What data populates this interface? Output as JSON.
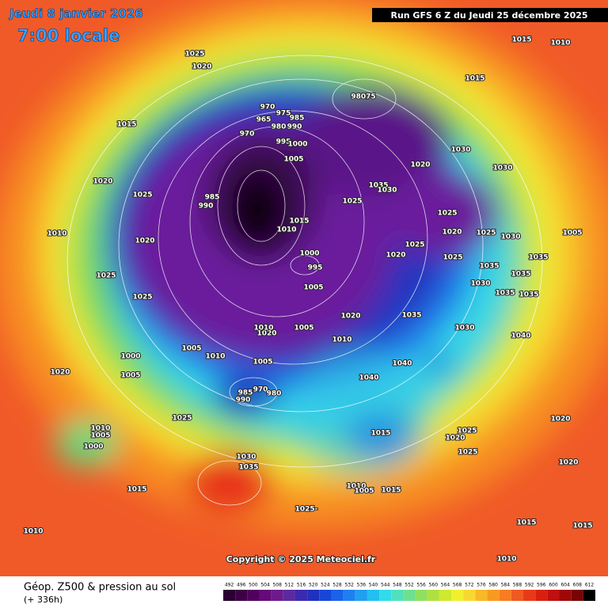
{
  "header": {
    "date": "Jeudi 8 janvier 2026",
    "time": "7:00 locale",
    "run": "Run GFS 6 Z du Jeudi 25 décembre 2025"
  },
  "copyright": "Copyright © 2025 Meteociel.fr",
  "footer": {
    "title": "Géop. Z500 & pression au sol",
    "lead": "(+ 336h)"
  },
  "scale": {
    "values": [
      492,
      496,
      500,
      504,
      508,
      512,
      516,
      520,
      524,
      528,
      532,
      536,
      540,
      544,
      548,
      552,
      556,
      560,
      564,
      568,
      572,
      576,
      580,
      584,
      588,
      592,
      596,
      600,
      604,
      608,
      612
    ],
    "colors": [
      "#2a0030",
      "#3d0045",
      "#52005e",
      "#650a78",
      "#6e1a8c",
      "#5a2aa0",
      "#3b2ab0",
      "#2030c0",
      "#1846d8",
      "#1a62e8",
      "#1e80f0",
      "#20a0f0",
      "#22c0f0",
      "#30dce8",
      "#50e0c0",
      "#70e090",
      "#90e060",
      "#b0e040",
      "#d0e830",
      "#f0f030",
      "#f8d830",
      "#f8b828",
      "#f89a20",
      "#f87c20",
      "#f05a20",
      "#e83a18",
      "#d82010",
      "#c01010",
      "#a00808",
      "#780404",
      "#000000"
    ]
  },
  "isobar_labels": [
    "1025",
    "1020",
    "1015",
    "1020",
    "1025",
    "1010",
    "1020",
    "1025",
    "1025",
    "1000",
    "1005",
    "1005",
    "1010",
    "1020",
    "1025",
    "1010",
    "1005",
    "1000",
    "1015",
    "1030",
    "1035",
    "1010",
    "970",
    "975",
    "985",
    "965",
    "980",
    "990",
    "970",
    "995",
    "1000",
    "1005",
    "985",
    "990",
    "1015",
    "1010",
    "1000",
    "995",
    "1005",
    "98075",
    "1015",
    "1015",
    "1010",
    "1030",
    "1030",
    "1020",
    "1035",
    "1030",
    "1025",
    "1025",
    "1020",
    "1025",
    "1030",
    "1025",
    "1020",
    "1025",
    "1035",
    "1035",
    "1005",
    "1035",
    "1030",
    "1035",
    "1035",
    "1035",
    "1020",
    "1005",
    "1010",
    "1030",
    "1040",
    "1040",
    "1040",
    "1015",
    "1025",
    "1020",
    "1025",
    "1020",
    "1020",
    "1025-",
    "1010",
    "1005",
    "1015",
    "1015",
    "1015",
    "1010",
    "1020",
    "1010",
    "1005",
    "970",
    "990",
    "980",
    "985"
  ]
}
